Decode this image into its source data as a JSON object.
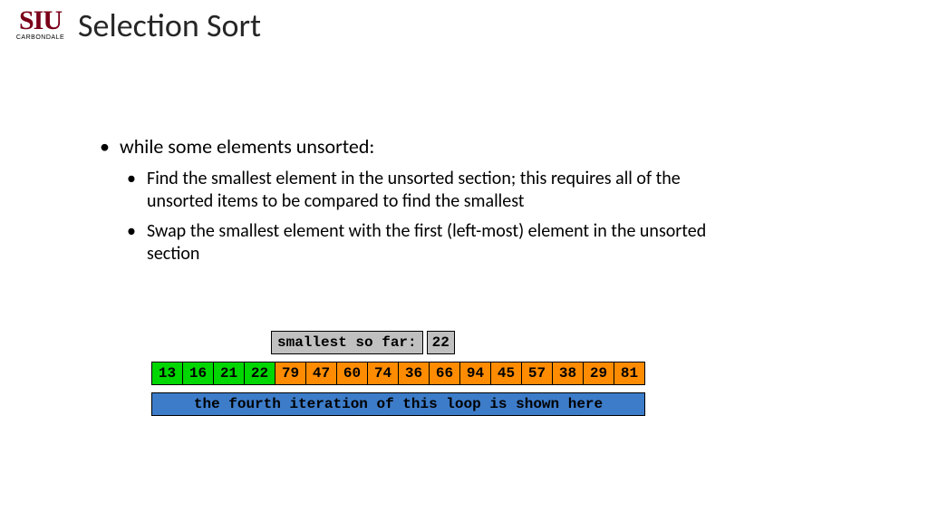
{
  "logo": {
    "main": "SIU",
    "sub": "CARBONDALE",
    "color": "#7a0019"
  },
  "title": "Selection Sort",
  "bullets": {
    "l1": "while some elements unsorted:",
    "l2a": "Find the smallest element in the unsorted section; this requires all of the unsorted items to be compared to find the smallest",
    "l2b": "Swap the smallest element with the first (left-most) element in the unsorted section"
  },
  "smallest": {
    "label": "smallest so far:",
    "value": "22",
    "bg": "#c0c0c0"
  },
  "array": {
    "sorted_color": "#00d600",
    "unsorted_color": "#ff8c00",
    "cells": [
      {
        "v": "13",
        "sorted": true
      },
      {
        "v": "16",
        "sorted": true
      },
      {
        "v": "21",
        "sorted": true
      },
      {
        "v": "22",
        "sorted": true
      },
      {
        "v": "79",
        "sorted": false
      },
      {
        "v": "47",
        "sorted": false
      },
      {
        "v": "60",
        "sorted": false
      },
      {
        "v": "74",
        "sorted": false
      },
      {
        "v": "36",
        "sorted": false
      },
      {
        "v": "66",
        "sorted": false
      },
      {
        "v": "94",
        "sorted": false
      },
      {
        "v": "45",
        "sorted": false
      },
      {
        "v": "57",
        "sorted": false
      },
      {
        "v": "38",
        "sorted": false
      },
      {
        "v": "29",
        "sorted": false
      },
      {
        "v": "81",
        "sorted": false
      }
    ]
  },
  "caption": {
    "text": "the fourth iteration of this loop is shown here",
    "bg": "#3d7cc9"
  },
  "fonts": {
    "title_size": 36,
    "body_size": 22,
    "sub_size": 20,
    "mono_size": 16
  }
}
